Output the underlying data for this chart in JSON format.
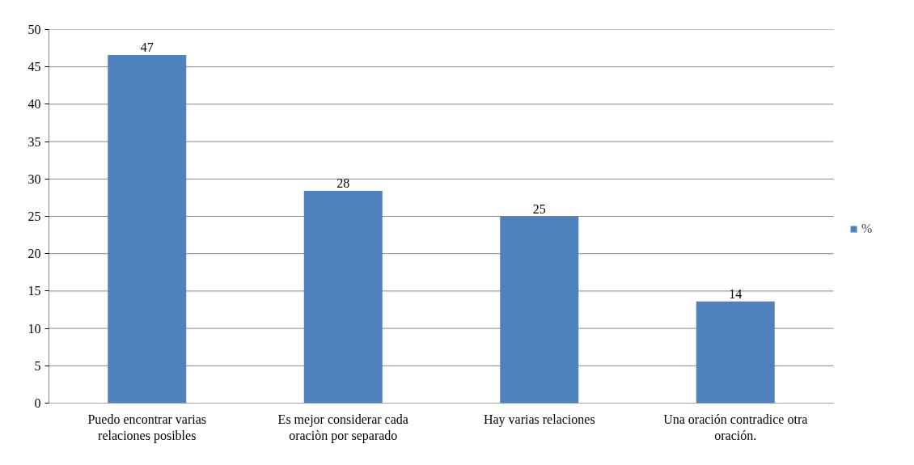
{
  "chart_data": {
    "type": "bar",
    "categories": [
      "Puedo encontrar varias\nrelaciones posibles",
      "Es mejor considerar cada\noraciòn por separado",
      "Hay varias relaciones",
      "Una oración contradice otra\noración."
    ],
    "series": [
      {
        "name": "%",
        "color": "#4f81bd",
        "values": [
          46.6,
          28.4,
          25.0,
          13.6
        ],
        "value_labels": [
          "47",
          "28",
          "25",
          "14"
        ]
      }
    ],
    "ylim": [
      0,
      50
    ],
    "yticks": [
      0,
      5,
      10,
      15,
      20,
      25,
      30,
      35,
      40,
      45,
      50
    ],
    "grid": "y",
    "legend": "right"
  }
}
